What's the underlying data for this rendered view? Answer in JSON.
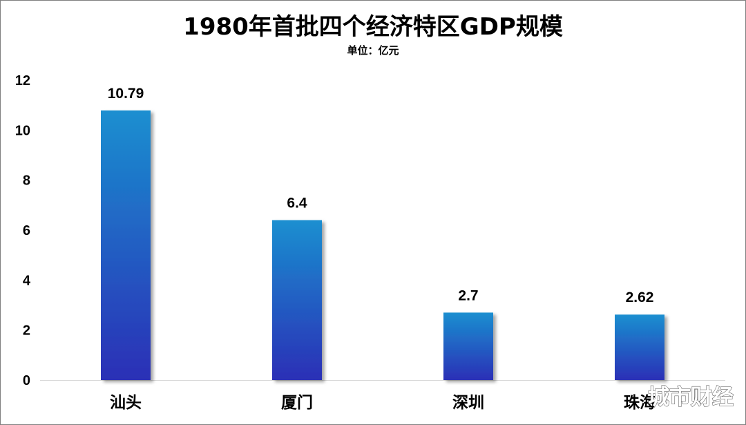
{
  "colors": {
    "bar_top": "#1a8fd0",
    "bar_bottom": "#2b2fb6",
    "axis": "#d9d9d9",
    "text": "#000000"
  },
  "watermark": {
    "text": "城市财经"
  },
  "chart_data": {
    "type": "bar",
    "title": "1980年首批四个经济特区GDP规模",
    "subtitle": "单位：亿元",
    "xlabel": "",
    "ylabel": "",
    "categories": [
      "汕头",
      "厦门",
      "深圳",
      "珠海"
    ],
    "values": [
      10.79,
      6.4,
      2.7,
      2.62
    ],
    "value_labels": [
      "10.79",
      "6.4",
      "2.7",
      "2.62"
    ],
    "ylim": [
      0,
      12
    ],
    "yticks": [
      0,
      2,
      4,
      6,
      8,
      10,
      12
    ],
    "grid": false,
    "legend": "none"
  }
}
